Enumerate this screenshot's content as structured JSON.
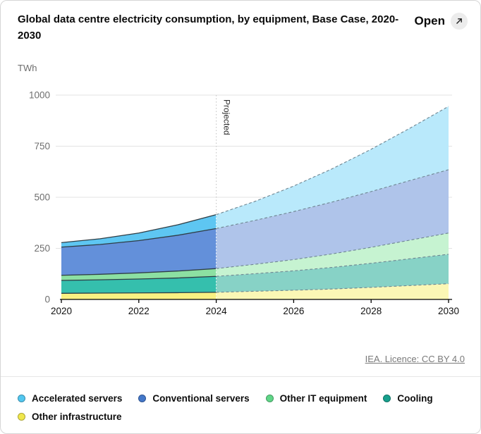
{
  "card": {
    "title": "Global data centre electricity consumption, by equipment, Base Case, 2020-2030",
    "open_label": "Open",
    "unit_label": "TWh",
    "attribution": "IEA. Licence: CC BY 4.0"
  },
  "chart_data": {
    "type": "area",
    "stacked": true,
    "title": "Global data centre electricity consumption, by equipment, Base Case, 2020-2030",
    "ylabel": "TWh",
    "xlabel": "",
    "ylim": [
      0,
      1000
    ],
    "yticks": [
      0,
      250,
      500,
      750,
      1000
    ],
    "xticks": [
      2020,
      2022,
      2024,
      2026,
      2028,
      2030
    ],
    "grid": true,
    "legend_position": "bottom",
    "projected_from": 2024,
    "projected_label": "Projected",
    "x": [
      2020,
      2021,
      2022,
      2023,
      2024,
      2025,
      2026,
      2027,
      2028,
      2029,
      2030
    ],
    "series": [
      {
        "name": "Other infrastructure",
        "values": [
          30,
          31,
          32,
          33,
          35,
          40,
          45,
          51,
          59,
          68,
          77
        ],
        "color": "#F9F182",
        "projected_color": "#FBF7B5",
        "legend_dot": "#F0E74C"
      },
      {
        "name": "Cooling",
        "values": [
          63,
          65,
          68,
          72,
          78,
          86,
          95,
          106,
          118,
          131,
          144
        ],
        "color": "#35BFAD",
        "projected_color": "#87D2C6",
        "legend_dot": "#17A08D"
      },
      {
        "name": "Other IT equipment",
        "values": [
          25,
          27,
          30,
          34,
          38,
          46,
          55,
          66,
          78,
          91,
          104
        ],
        "color": "#8CE0A2",
        "projected_color": "#C6F3D1",
        "legend_dot": "#5FD687"
      },
      {
        "name": "Conventional servers",
        "values": [
          138,
          146,
          158,
          175,
          196,
          215,
          235,
          254,
          273,
          292,
          310
        ],
        "color": "#6390DA",
        "projected_color": "#AFC4EA",
        "legend_dot": "#4377C9"
      },
      {
        "name": "Accelerated servers",
        "values": [
          22,
          28,
          37,
          51,
          68,
          93,
          125,
          163,
          207,
          256,
          310
        ],
        "color": "#5EC6F2",
        "projected_color": "#B9E9FB",
        "legend_dot": "#52C7F0"
      }
    ],
    "totals": [
      278,
      297,
      325,
      365,
      415,
      480,
      555,
      640,
      735,
      838,
      945
    ],
    "legend_rows": [
      [
        "Accelerated servers",
        "Conventional servers",
        "Other IT equipment",
        "Cooling"
      ],
      [
        "Other infrastructure"
      ]
    ]
  }
}
